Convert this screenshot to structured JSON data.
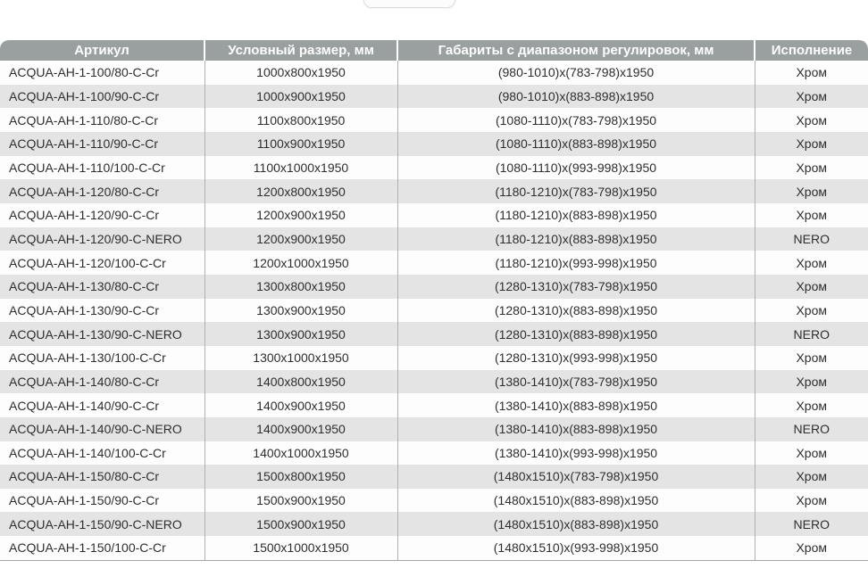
{
  "page": {
    "background": "#ffffff"
  },
  "colors": {
    "header_bg": "#9a9f9f",
    "header_text": "#ffffff",
    "row_odd_bg": "#fdfdfd",
    "row_even_bg": "#e4e4e4",
    "cell_text": "#2e2e2e",
    "divider": "#b0b0b0",
    "table_bottom_border": "#a6a6a6"
  },
  "table": {
    "columns": [
      {
        "label": "Артикул"
      },
      {
        "label": "Условный размер, мм"
      },
      {
        "label": "Габариты с диапазоном регулировок, мм"
      },
      {
        "label": "Исполнение"
      }
    ],
    "rows": [
      {
        "article": "ACQUA-AH-1-100/80-C-Cr",
        "size": "1000x800x1950",
        "dimensions": "(980-1010)x(783-798)x1950",
        "finish": "Хром"
      },
      {
        "article": "ACQUA-AH-1-100/90-C-Cr",
        "size": "1000x900x1950",
        "dimensions": "(980-1010)x(883-898)x1950",
        "finish": "Хром"
      },
      {
        "article": "ACQUA-AH-1-110/80-C-Cr",
        "size": "1100x800x1950",
        "dimensions": "(1080-1110)x(783-798)x1950",
        "finish": "Хром"
      },
      {
        "article": "ACQUA-AH-1-110/90-C-Cr",
        "size": "1100x900x1950",
        "dimensions": "(1080-1110)x(883-898)x1950",
        "finish": "Хром"
      },
      {
        "article": "ACQUA-AH-1-110/100-C-Cr",
        "size": "1100x1000x1950",
        "dimensions": "(1080-1110)x(993-998)x1950",
        "finish": "Хром"
      },
      {
        "article": "ACQUA-AH-1-120/80-C-Cr",
        "size": "1200x800x1950",
        "dimensions": "(1180-1210)x(783-798)x1950",
        "finish": "Хром"
      },
      {
        "article": "ACQUA-AH-1-120/90-C-Cr",
        "size": "1200x900x1950",
        "dimensions": "(1180-1210)x(883-898)x1950",
        "finish": "Хром"
      },
      {
        "article": "ACQUA-AH-1-120/90-C-NERO",
        "size": "1200x900x1950",
        "dimensions": "(1180-1210)x(883-898)x1950",
        "finish": "NERO"
      },
      {
        "article": "ACQUA-AH-1-120/100-C-Cr",
        "size": "1200x1000x1950",
        "dimensions": "(1180-1210)x(993-998)x1950",
        "finish": "Хром"
      },
      {
        "article": "ACQUA-AH-1-130/80-C-Cr",
        "size": "1300x800x1950",
        "dimensions": "(1280-1310)x(783-798)x1950",
        "finish": "Хром"
      },
      {
        "article": "ACQUA-AH-1-130/90-C-Cr",
        "size": "1300x900x1950",
        "dimensions": "(1280-1310)x(883-898)x1950",
        "finish": "Хром"
      },
      {
        "article": "ACQUA-AH-1-130/90-C-NERO",
        "size": "1300x900x1950",
        "dimensions": "(1280-1310)x(883-898)x1950",
        "finish": "NERO"
      },
      {
        "article": "ACQUA-AH-1-130/100-C-Cr",
        "size": "1300x1000x1950",
        "dimensions": "(1280-1310)x(993-998)x1950",
        "finish": "Хром"
      },
      {
        "article": "ACQUA-AH-1-140/80-C-Cr",
        "size": "1400x800x1950",
        "dimensions": "(1380-1410)x(783-798)x1950",
        "finish": "Хром"
      },
      {
        "article": "ACQUA-AH-1-140/90-C-Cr",
        "size": "1400x900x1950",
        "dimensions": "(1380-1410)x(883-898)x1950",
        "finish": "Хром"
      },
      {
        "article": "ACQUA-AH-1-140/90-C-NERO",
        "size": "1400x900x1950",
        "dimensions": "(1380-1410)x(883-898)x1950",
        "finish": "NERO"
      },
      {
        "article": "ACQUA-AH-1-140/100-C-Cr",
        "size": "1400x1000x1950",
        "dimensions": "(1380-1410)x(993-998)x1950",
        "finish": "Хром"
      },
      {
        "article": "ACQUA-AH-1-150/80-C-Cr",
        "size": "1500x800x1950",
        "dimensions": "(1480x1510)x(783-798)x1950",
        "finish": "Хром"
      },
      {
        "article": "ACQUA-AH-1-150/90-C-Cr",
        "size": "1500x900x1950",
        "dimensions": "(1480x1510)x(883-898)x1950",
        "finish": "Хром"
      },
      {
        "article": "ACQUA-AH-1-150/90-C-NERO",
        "size": "1500x900x1950",
        "dimensions": "(1480x1510)x(883-898)x1950",
        "finish": "NERO"
      },
      {
        "article": "ACQUA-AH-1-150/100-C-Cr",
        "size": "1500x1000x1950",
        "dimensions": "(1480x1510)x(993-998)x1950",
        "finish": "Хром"
      }
    ]
  }
}
